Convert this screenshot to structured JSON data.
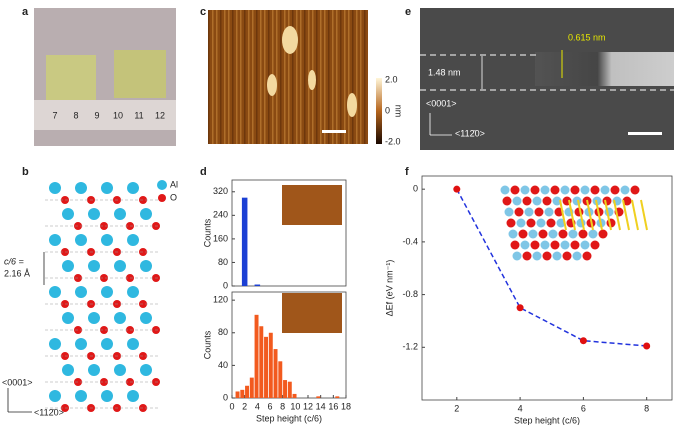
{
  "panel_labels": [
    "a",
    "b",
    "c",
    "d",
    "e",
    "f"
  ],
  "panel_a": {
    "ruler_labels": [
      "7",
      "8",
      "9",
      "10",
      "11",
      "12"
    ]
  },
  "panel_b": {
    "legend": [
      "Al",
      "O"
    ],
    "spacing_label": "c/6 =",
    "spacing_value": "2.16 Å",
    "axis_vertical": "<0001>",
    "axis_horizontal": "<112̄0>"
  },
  "panel_c": {
    "colorbar_ticks": [
      "2.0",
      "0",
      "-2.0"
    ],
    "colorbar_unit": "nm"
  },
  "panel_e": {
    "layer_spacing": "0.615 nm",
    "step_height": "1.48 nm",
    "axis_vertical": "<0001>",
    "axis_horizontal": "<112̄0>"
  },
  "chart_data": [
    {
      "type": "histogram",
      "ylabel": "Counts",
      "bins": [
        1.5,
        2.5,
        3.5,
        4.5
      ],
      "values": [
        300,
        0,
        5
      ],
      "color": "#1b3fd4",
      "xlim": [
        0,
        18
      ],
      "ylim": [
        0,
        360
      ],
      "yticks": [
        0,
        80,
        160,
        240,
        320
      ]
    },
    {
      "type": "histogram",
      "xlabel": "Step height (c/6)",
      "ylabel": "Counts",
      "bins": [
        0.5,
        1.25,
        2,
        2.75,
        3.5,
        4.25,
        5,
        5.75,
        6.5,
        7.25,
        8,
        8.75,
        9.5,
        10.25,
        11,
        11.75,
        12.5,
        13.25,
        14,
        14.75,
        15.5,
        16.25,
        17,
        17.75
      ],
      "values": [
        8,
        10,
        15,
        25,
        102,
        88,
        75,
        80,
        60,
        45,
        22,
        20,
        5,
        0,
        0,
        0,
        0,
        2,
        0,
        0,
        0,
        2,
        0
      ],
      "color": "#f25a1e",
      "xlim": [
        0,
        18
      ],
      "xticks": [
        0,
        2,
        4,
        6,
        8,
        10,
        12,
        14,
        16,
        18
      ],
      "ylim": [
        0,
        130
      ],
      "yticks": [
        0,
        40,
        80,
        120
      ]
    },
    {
      "type": "line",
      "xlabel": "Step height (c/6)",
      "ylabel": "ΔEf (eV nm⁻¹)",
      "x": [
        2,
        4,
        6,
        8
      ],
      "values": [
        0,
        -0.9,
        -1.15,
        -1.19
      ],
      "color": "#e01010",
      "line_color": "#2233dd",
      "xlim": [
        0.9,
        8.8
      ],
      "xticks": [
        2,
        4,
        6,
        8
      ],
      "ylim": [
        -1.6,
        0.1
      ],
      "yticks": [
        0,
        -0.4,
        -0.8,
        -1.2
      ]
    }
  ]
}
